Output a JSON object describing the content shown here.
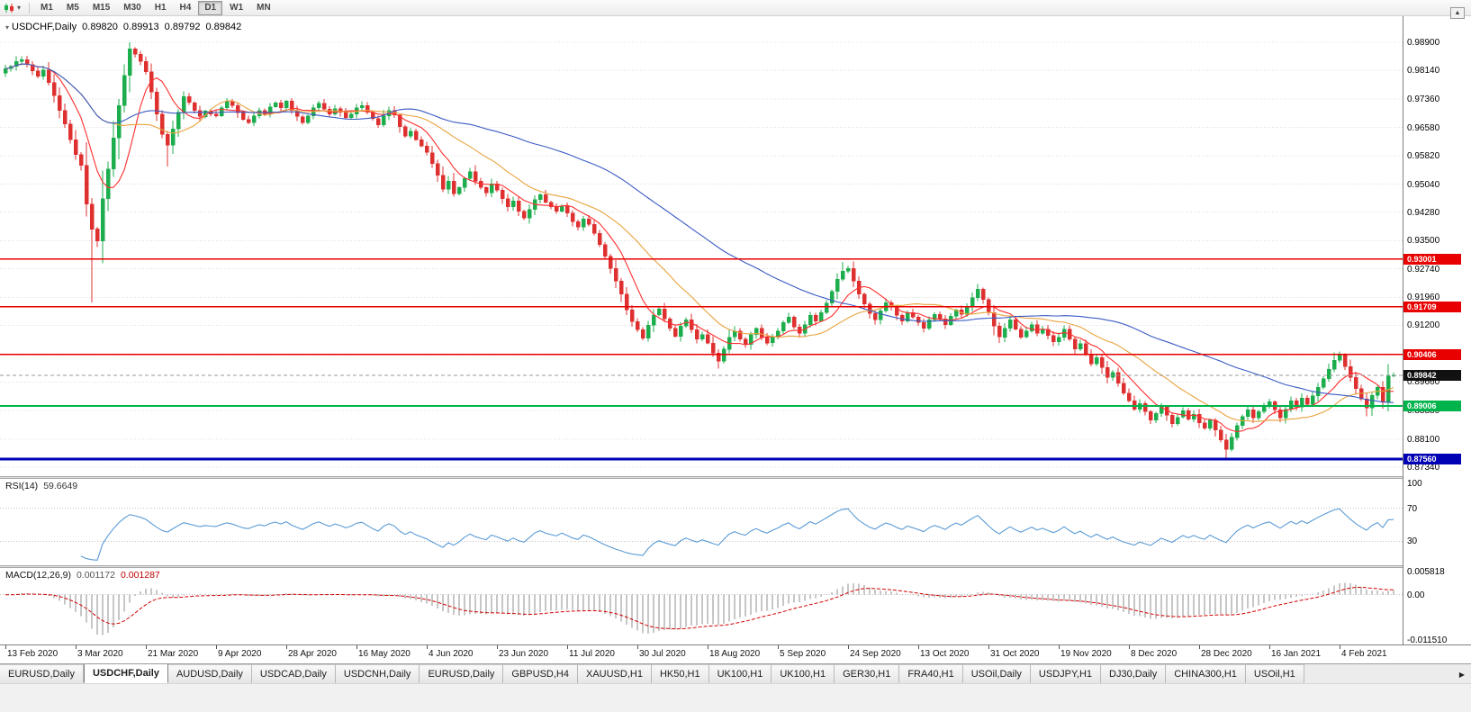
{
  "icons": {
    "dropdown": "▾",
    "scroll_up": "▲",
    "tab_scroll_right": "▶",
    "title_marker": "▾"
  },
  "toolbar": {
    "timeframes": [
      "M1",
      "M5",
      "M15",
      "M30",
      "H1",
      "H4",
      "D1",
      "W1",
      "MN"
    ],
    "active_timeframe": "D1"
  },
  "chart": {
    "title": {
      "symbol": "USDCHF,Daily",
      "open": "0.89820",
      "high": "0.89913",
      "low": "0.89792",
      "close": "0.89842"
    },
    "price_axis_ticks": [
      "0.98900",
      "0.98140",
      "0.97360",
      "0.96580",
      "0.95820",
      "0.95040",
      "0.94280",
      "0.93500",
      "0.92740",
      "0.91960",
      "0.91200",
      "0.90420",
      "0.89660",
      "0.88880",
      "0.88100",
      "0.87340"
    ],
    "hlines": [
      {
        "price": 0.93001,
        "label": "0.93001",
        "color": "#e80000",
        "thickness": 1.5
      },
      {
        "price": 0.91709,
        "label": "0.91709",
        "color": "#e80000",
        "thickness": 1.5
      },
      {
        "price": 0.90406,
        "label": "0.90406",
        "color": "#e80000",
        "thickness": 1.5
      },
      {
        "price": 0.89006,
        "label": "0.89006",
        "color": "#00b44b",
        "thickness": 2
      },
      {
        "price": 0.8756,
        "label": "0.87560",
        "color": "#0000b4",
        "thickness": 3
      }
    ],
    "current_price": {
      "value": 0.89842,
      "label": "0.89842",
      "badge_color": "#111111"
    }
  },
  "rsi": {
    "name": "RSI(14)",
    "value": "59.6649",
    "line_color": "#5b9bd5",
    "levels": [
      70,
      30
    ],
    "axis": [
      {
        "label": "100",
        "value": 100
      },
      {
        "label": "70",
        "value": 70
      },
      {
        "label": "30",
        "value": 30
      }
    ]
  },
  "macd": {
    "name": "MACD(12,26,9)",
    "value_main": "0.001172",
    "value_signal": "0.001287",
    "histogram_color": "#8f8f8f",
    "signal_color": "#d40000",
    "axis": [
      {
        "label": "0.005818",
        "value": 0.005818
      },
      {
        "label": "0.00",
        "value": 0
      },
      {
        "label": "-0.011510",
        "value": -0.01151
      }
    ]
  },
  "date_axis": [
    "13 Feb 2020",
    "3 Mar 2020",
    "21 Mar 2020",
    "9 Apr 2020",
    "28 Apr 2020",
    "16 May 2020",
    "4 Jun 2020",
    "23 Jun 2020",
    "11 Jul 2020",
    "30 Jul 2020",
    "18 Aug 2020",
    "5 Sep 2020",
    "24 Sep 2020",
    "13 Oct 2020",
    "31 Oct 2020",
    "19 Nov 2020",
    "8 Dec 2020",
    "28 Dec 2020",
    "16 Jan 2021",
    "4 Feb 2021"
  ],
  "tabs": {
    "active_index": 1,
    "items": [
      "EURUSD,Daily",
      "USDCHF,Daily",
      "AUDUSD,Daily",
      "USDCAD,Daily",
      "USDCNH,Daily",
      "EURUSD,Daily",
      "GBPUSD,H4",
      "XAUUSD,H1",
      "HK50,H1",
      "UK100,H1",
      "UK100,H1",
      "GER30,H1",
      "FRA40,H1",
      "USOil,Daily",
      "USDJPY,H1",
      "DJ30,Daily",
      "CHINA300,H1",
      "USOil,H1"
    ],
    "scroll_right": "▶"
  },
  "chart_data": {
    "type": "candlestick",
    "symbol": "USDCHF",
    "timeframe": "Daily",
    "candle_up_color": "#1cae4c",
    "candle_down_color": "#df3030",
    "moving_averages": [
      {
        "period": 8,
        "color": "#ff2d2d"
      },
      {
        "period": 21,
        "color": "#e8a33d"
      },
      {
        "period": 55,
        "color": "#3b5bc4"
      }
    ],
    "closes": [
      0.9818,
      0.9825,
      0.9838,
      0.9843,
      0.983,
      0.9812,
      0.9798,
      0.9815,
      0.978,
      0.9745,
      0.9705,
      0.9668,
      0.9625,
      0.9585,
      0.9555,
      0.945,
      0.9382,
      0.935,
      0.9465,
      0.9545,
      0.963,
      0.9718,
      0.98,
      0.9872,
      0.9858,
      0.9838,
      0.981,
      0.9755,
      0.9695,
      0.964,
      0.961,
      0.9655,
      0.97,
      0.9742,
      0.9726,
      0.9705,
      0.9688,
      0.9703,
      0.9695,
      0.969,
      0.9712,
      0.973,
      0.9718,
      0.9698,
      0.968,
      0.9672,
      0.969,
      0.9705,
      0.9695,
      0.9715,
      0.9726,
      0.9712,
      0.973,
      0.9705,
      0.9688,
      0.9672,
      0.969,
      0.9712,
      0.9724,
      0.9708,
      0.9695,
      0.971,
      0.97,
      0.9685,
      0.9695,
      0.9712,
      0.9718,
      0.97,
      0.9682,
      0.9665,
      0.969,
      0.9705,
      0.9692,
      0.966,
      0.9635,
      0.9648,
      0.9625,
      0.9608,
      0.959,
      0.956,
      0.9528,
      0.949,
      0.9512,
      0.9478,
      0.9495,
      0.952,
      0.9538,
      0.9512,
      0.9495,
      0.948,
      0.9505,
      0.9488,
      0.9465,
      0.9442,
      0.9458,
      0.943,
      0.9412,
      0.9435,
      0.9462,
      0.9475,
      0.9455,
      0.9442,
      0.943,
      0.9445,
      0.9425,
      0.9402,
      0.9388,
      0.941,
      0.9395,
      0.937,
      0.934,
      0.9308,
      0.9275,
      0.924,
      0.9205,
      0.9162,
      0.913,
      0.9108,
      0.9085,
      0.912,
      0.9148,
      0.9165,
      0.9138,
      0.9112,
      0.909,
      0.9118,
      0.9135,
      0.9108,
      0.9082,
      0.9095,
      0.9072,
      0.9045,
      0.9022,
      0.9055,
      0.9088,
      0.9105,
      0.9082,
      0.9068,
      0.9095,
      0.9112,
      0.9088,
      0.9072,
      0.909,
      0.9105,
      0.9128,
      0.9142,
      0.9115,
      0.9098,
      0.9122,
      0.9148,
      0.9132,
      0.9155,
      0.918,
      0.9212,
      0.9245,
      0.9268,
      0.9275,
      0.924,
      0.9205,
      0.9178,
      0.9152,
      0.9135,
      0.916,
      0.9182,
      0.917,
      0.9148,
      0.9132,
      0.9155,
      0.9142,
      0.9128,
      0.9112,
      0.9135,
      0.915,
      0.9138,
      0.9122,
      0.9145,
      0.9162,
      0.915,
      0.9172,
      0.9195,
      0.9218,
      0.919,
      0.9155,
      0.9118,
      0.9088,
      0.9112,
      0.9135,
      0.911,
      0.9088,
      0.9105,
      0.9122,
      0.9098,
      0.911,
      0.9092,
      0.9075,
      0.9088,
      0.911,
      0.9082,
      0.9055,
      0.907,
      0.9042,
      0.9015,
      0.9032,
      0.9005,
      0.8978,
      0.8992,
      0.8962,
      0.8935,
      0.8915,
      0.8892,
      0.8908,
      0.8885,
      0.8862,
      0.888,
      0.8898,
      0.8875,
      0.8852,
      0.887,
      0.8888,
      0.8865,
      0.8878,
      0.8855,
      0.884,
      0.8862,
      0.8835,
      0.8808,
      0.8782,
      0.8815,
      0.8848,
      0.8872,
      0.889,
      0.8868,
      0.8885,
      0.8902,
      0.8912,
      0.889,
      0.8868,
      0.8892,
      0.8915,
      0.8898,
      0.8922,
      0.8905,
      0.8928,
      0.8952,
      0.8975,
      0.9,
      0.9025,
      0.9038,
      0.9008,
      0.8978,
      0.8948,
      0.892,
      0.8895,
      0.893,
      0.8952,
      0.8912,
      0.8982,
      0.89842
    ],
    "wick_overrides": [
      {
        "i": 2,
        "high": 0.9852
      },
      {
        "i": 16,
        "low": 0.9182
      },
      {
        "i": 23,
        "high": 0.989
      },
      {
        "i": 30,
        "low": 0.9552
      },
      {
        "i": 132,
        "low": 0.9002
      },
      {
        "i": 155,
        "high": 0.9292
      },
      {
        "i": 180,
        "high": 0.9232
      },
      {
        "i": 226,
        "low": 0.8757
      },
      {
        "i": 246,
        "high": 0.9046
      },
      {
        "i": 252,
        "low": 0.8872
      },
      {
        "i": 257,
        "high": 0.89913,
        "low": 0.89792
      }
    ],
    "current_candle": {
      "open": 0.8982,
      "high": 0.89913,
      "low": 0.89792,
      "close": 0.89842
    }
  }
}
